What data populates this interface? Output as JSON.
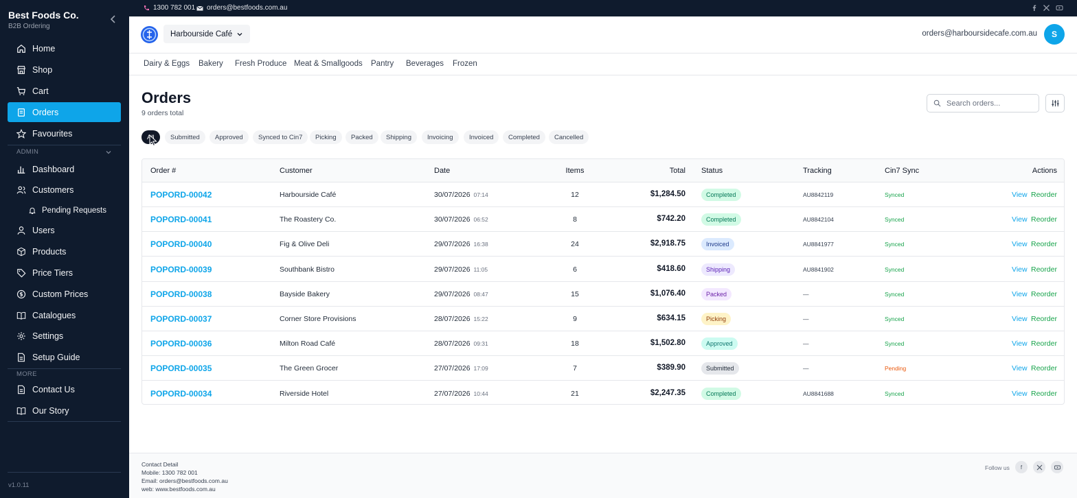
{
  "sidebar": {
    "brand_name": "Best Foods Co.",
    "brand_sub": "B2B Ordering",
    "items": [
      {
        "label": "Home",
        "icon": "home-icon"
      },
      {
        "label": "Shop",
        "icon": "store-icon"
      },
      {
        "label": "Cart",
        "icon": "cart-icon"
      },
      {
        "label": "Orders",
        "icon": "orders-icon",
        "active": true
      },
      {
        "label": "Favourites",
        "icon": "star-icon"
      }
    ],
    "admin_label": "ADMIN",
    "admin_items": [
      {
        "label": "Dashboard",
        "icon": "bar-chart-icon"
      },
      {
        "label": "Customers",
        "icon": "users-icon"
      },
      {
        "label": "Pending Requests",
        "icon": "bell-icon"
      },
      {
        "label": "Users",
        "icon": "user-icon"
      },
      {
        "label": "Products",
        "icon": "box-icon"
      },
      {
        "label": "Price Tiers",
        "icon": "tag-icon"
      },
      {
        "label": "Custom Prices",
        "icon": "dollar-icon"
      },
      {
        "label": "Catalogues",
        "icon": "book-icon"
      },
      {
        "label": "Settings",
        "icon": "gear-icon"
      },
      {
        "label": "Setup Guide",
        "icon": "file-icon"
      }
    ],
    "more_label": "MORE",
    "more_items": [
      {
        "label": "Contact Us",
        "icon": "file-icon"
      },
      {
        "label": "Our Story",
        "icon": "book-icon"
      }
    ],
    "version": "v1.0.11"
  },
  "topbar": {
    "phone": "1300 782 001",
    "email": "orders@bestfoods.com.au"
  },
  "header": {
    "store": "Harbourside Café",
    "user_email": "orders@harboursidecafe.com.au",
    "avatar_initial": "S"
  },
  "categories": [
    "Dairy & Eggs",
    "Bakery",
    "Fresh Produce",
    "Meat & Smallgoods",
    "Pantry",
    "Beverages",
    "Frozen"
  ],
  "page": {
    "title": "Orders",
    "subtitle": "9 orders total",
    "search_placeholder": "Search orders..."
  },
  "filters": [
    "All",
    "Submitted",
    "Approved",
    "Synced to Cin7",
    "Picking",
    "Packed",
    "Shipping",
    "Invoicing",
    "Invoiced",
    "Completed",
    "Cancelled"
  ],
  "table": {
    "headers": {
      "order": "Order #",
      "customer": "Customer",
      "date": "Date",
      "items": "Items",
      "total": "Total",
      "status": "Status",
      "tracking": "Tracking",
      "sync": "Cin7 Sync",
      "actions": "Actions"
    },
    "view_label": "View",
    "reorder_label": "Reorder",
    "rows": [
      {
        "order": "POPORD-00042",
        "customer": "Harbourside Café",
        "date": "30/07/2026",
        "time": "07:14",
        "items": "12",
        "total": "$1,284.50",
        "status": "Completed",
        "tracking": "AU8842119",
        "sync": "Synced"
      },
      {
        "order": "POPORD-00041",
        "customer": "The Roastery Co.",
        "date": "30/07/2026",
        "time": "06:52",
        "items": "8",
        "total": "$742.20",
        "status": "Completed",
        "tracking": "AU8842104",
        "sync": "Synced"
      },
      {
        "order": "POPORD-00040",
        "customer": "Fig & Olive Deli",
        "date": "29/07/2026",
        "time": "16:38",
        "items": "24",
        "total": "$2,918.75",
        "status": "Invoiced",
        "tracking": "AU8841977",
        "sync": "Synced"
      },
      {
        "order": "POPORD-00039",
        "customer": "Southbank Bistro",
        "date": "29/07/2026",
        "time": "11:05",
        "items": "6",
        "total": "$418.60",
        "status": "Shipping",
        "tracking": "AU8841902",
        "sync": "Synced"
      },
      {
        "order": "POPORD-00038",
        "customer": "Bayside Bakery",
        "date": "29/07/2026",
        "time": "08:47",
        "items": "15",
        "total": "$1,076.40",
        "status": "Packed",
        "tracking": "—",
        "sync": "Synced"
      },
      {
        "order": "POPORD-00037",
        "customer": "Corner Store Provisions",
        "date": "28/07/2026",
        "time": "15:22",
        "items": "9",
        "total": "$634.15",
        "status": "Picking",
        "tracking": "—",
        "sync": "Synced"
      },
      {
        "order": "POPORD-00036",
        "customer": "Milton Road Café",
        "date": "28/07/2026",
        "time": "09:31",
        "items": "18",
        "total": "$1,502.80",
        "status": "Approved",
        "tracking": "—",
        "sync": "Synced"
      },
      {
        "order": "POPORD-00035",
        "customer": "The Green Grocer",
        "date": "27/07/2026",
        "time": "17:09",
        "items": "7",
        "total": "$389.90",
        "status": "Submitted",
        "tracking": "—",
        "sync": "Pending"
      },
      {
        "order": "POPORD-00034",
        "customer": "Riverside Hotel",
        "date": "27/07/2026",
        "time": "10:44",
        "items": "21",
        "total": "$2,247.35",
        "status": "Completed",
        "tracking": "AU8841688",
        "sync": "Synced"
      }
    ]
  },
  "status_colors": {
    "Completed": {
      "bg": "#d1fae5",
      "fg": "#047857"
    },
    "Invoiced": {
      "bg": "#dbeafe",
      "fg": "#1e3a8a"
    },
    "Shipping": {
      "bg": "#ede9fe",
      "fg": "#5b21b6"
    },
    "Packed": {
      "bg": "#f3e8ff",
      "fg": "#6b21a8"
    },
    "Picking": {
      "bg": "#fef3c7",
      "fg": "#92400e"
    },
    "Approved": {
      "bg": "#ccfbf1",
      "fg": "#0f766e"
    },
    "Submitted": {
      "bg": "#e5e7eb",
      "fg": "#1f2937"
    }
  },
  "sync_colors": {
    "Synced": "#16a34a",
    "Pending": "#ea580c"
  },
  "footer": {
    "title": "Contact Detail",
    "mobile": "Mobile: 1300 782 001",
    "email": "Email: orders@bestfoods.com.au",
    "web": "web: www.bestfoods.com.au",
    "follow": "Follow us",
    "facebook": "f"
  }
}
